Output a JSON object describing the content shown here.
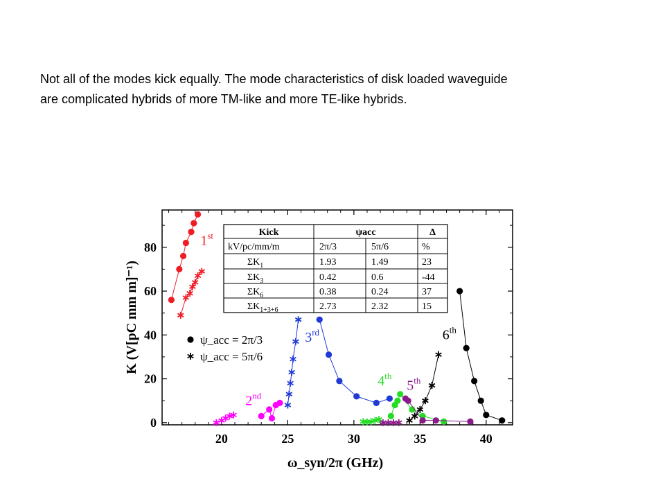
{
  "caption": {
    "line1": "Not all of the modes kick equally. The mode characteristics of disk loaded waveguide",
    "line2": "are complicated hybrids of more TM-like and more TE-like hybrids."
  },
  "chart_data": {
    "type": "scatter",
    "xlabel": "ω_syn/2π (GHz)",
    "ylabel": "K (V[pC mm m]⁻¹)",
    "xlim": [
      15.5,
      42
    ],
    "ylim": [
      -1,
      97
    ],
    "xticks": [
      20,
      25,
      30,
      35,
      40
    ],
    "yticks": [
      0,
      20,
      40,
      60,
      80
    ],
    "grid": false,
    "legend": {
      "placement": "middle-left",
      "entries": [
        {
          "marker": "dot",
          "label": "ψ_acc = 2π/3"
        },
        {
          "marker": "star",
          "label": "ψ_acc = 5π/6"
        }
      ]
    },
    "series": [
      {
        "name": "1st",
        "marker": "dot",
        "color": "#ee1c25",
        "line": true,
        "x": [
          16.2,
          16.8,
          17.1,
          17.3,
          17.7,
          17.9,
          18.2
        ],
        "y": [
          56,
          70,
          76,
          82,
          87,
          91,
          95
        ]
      },
      {
        "name": "1st",
        "marker": "star",
        "color": "#ee1c25",
        "line": true,
        "x": [
          16.9,
          17.3,
          17.6,
          17.8,
          18.0,
          18.2,
          18.5
        ],
        "y": [
          49,
          57,
          59,
          62,
          64,
          67,
          69
        ]
      },
      {
        "name": "2nd",
        "marker": "star",
        "color": "#ff00ff",
        "line": true,
        "x": [
          19.6,
          20.0,
          20.3,
          20.6,
          20.9
        ],
        "y": [
          0,
          1,
          2,
          3,
          3.5
        ]
      },
      {
        "name": "2nd",
        "marker": "dot",
        "color": "#ff00ff",
        "line": true,
        "x": [
          23.0,
          23.6,
          23.8,
          24.1,
          24.4
        ],
        "y": [
          3,
          6,
          2,
          8,
          9
        ]
      },
      {
        "name": "3rd",
        "marker": "star",
        "color": "#1f3ad6",
        "line": true,
        "x": [
          25.0,
          25.1,
          25.2,
          25.3,
          25.4,
          25.6,
          25.8
        ],
        "y": [
          8,
          13,
          18,
          23,
          29,
          37,
          47
        ]
      },
      {
        "name": "3rd",
        "marker": "dot",
        "color": "#1f3ad6",
        "line": true,
        "x": [
          27.4,
          28.1,
          28.9,
          30.2,
          31.7,
          32.7
        ],
        "y": [
          47,
          31,
          19,
          12,
          9,
          11
        ]
      },
      {
        "name": "4th",
        "marker": "star",
        "color": "#22dd22",
        "line": true,
        "x": [
          30.7,
          31.0,
          31.3,
          31.6,
          31.9
        ],
        "y": [
          0.5,
          0.3,
          0.5,
          1,
          1.5
        ]
      },
      {
        "name": "4th",
        "marker": "dot",
        "color": "#22dd22",
        "line": true,
        "x": [
          32.8,
          33.1,
          33.3,
          33.5,
          34.4,
          35.2,
          36.8
        ],
        "y": [
          3,
          8,
          10,
          13,
          6,
          3,
          0.5
        ]
      },
      {
        "name": "5th",
        "marker": "star",
        "color": "#8a1a8a",
        "line": true,
        "x": [
          32.2,
          32.6,
          33.0,
          33.4
        ],
        "y": [
          0,
          0,
          0,
          0
        ]
      },
      {
        "name": "5th",
        "marker": "dot",
        "color": "#8a1a8a",
        "line": true,
        "x": [
          33.9,
          34.1,
          35.2,
          36.2,
          38.8
        ],
        "y": [
          11,
          10,
          1,
          1,
          0.5
        ]
      },
      {
        "name": "6th",
        "marker": "star",
        "color": "#000000",
        "line": true,
        "x": [
          34.2,
          34.6,
          35.0,
          35.4,
          35.9,
          36.4
        ],
        "y": [
          1,
          3,
          6,
          10,
          17,
          31
        ]
      },
      {
        "name": "6th",
        "marker": "dot",
        "color": "#000000",
        "line": true,
        "x": [
          38.0,
          38.5,
          39.1,
          39.6,
          40.0,
          41.2
        ],
        "y": [
          60,
          34,
          19,
          10,
          3.5,
          1
        ]
      }
    ],
    "annotations": [
      {
        "text": "1",
        "sup": "st",
        "x": 18.4,
        "y": 81,
        "color": "#ee1c25"
      },
      {
        "text": "2",
        "sup": "nd",
        "x": 21.8,
        "y": 8,
        "color": "#ff00ff"
      },
      {
        "text": "3",
        "sup": "rd",
        "x": 26.3,
        "y": 37,
        "color": "#1f3ad6"
      },
      {
        "text": "4",
        "sup": "th",
        "x": 31.8,
        "y": 17,
        "color": "#22dd22"
      },
      {
        "text": "5",
        "sup": "th",
        "x": 34.0,
        "y": 15,
        "color": "#8a1a8a"
      },
      {
        "text": "6",
        "sup": "th",
        "x": 36.7,
        "y": 38,
        "color": "#000000"
      }
    ],
    "table": {
      "headers": [
        "Kick",
        "ψacc",
        "Δ"
      ],
      "rows": [
        [
          "kV/pc/mm/m",
          "2π/3",
          "5π/6",
          "%"
        ],
        [
          "ΣK1",
          "1.93",
          "1.49",
          "23"
        ],
        [
          "ΣK3",
          "0.42",
          "0.6",
          "-44"
        ],
        [
          "ΣK6",
          "0.38",
          "0.24",
          "37"
        ],
        [
          "ΣK1+3+6",
          "2.73",
          "2.32",
          "15"
        ]
      ]
    }
  }
}
